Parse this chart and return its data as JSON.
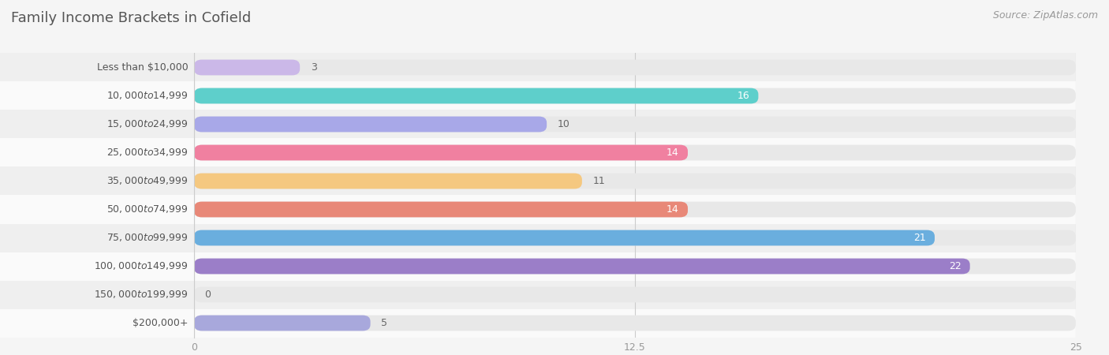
{
  "title": "Family Income Brackets in Cofield",
  "source": "Source: ZipAtlas.com",
  "categories": [
    "Less than $10,000",
    "$10,000 to $14,999",
    "$15,000 to $24,999",
    "$25,000 to $34,999",
    "$35,000 to $49,999",
    "$50,000 to $74,999",
    "$75,000 to $99,999",
    "$100,000 to $149,999",
    "$150,000 to $199,999",
    "$200,000+"
  ],
  "values": [
    3,
    16,
    10,
    14,
    11,
    14,
    21,
    22,
    0,
    5
  ],
  "colors": [
    "#cbb8e8",
    "#5ecfcb",
    "#a8a8e8",
    "#f080a0",
    "#f5c880",
    "#e88878",
    "#6aaede",
    "#9b7ec8",
    "#5ecfbb",
    "#a8a8dc"
  ],
  "xlim": [
    0,
    25
  ],
  "xticks": [
    0,
    12.5,
    25
  ],
  "background_color": "#f5f5f5",
  "bar_background": "#e8e8e8",
  "row_background_odd": "#efefef",
  "row_background_even": "#fafafa",
  "title_color": "#555555",
  "label_color": "#555555",
  "value_color_inside": "#ffffff",
  "value_color_outside": "#666666",
  "label_fontsize": 9,
  "value_fontsize": 9,
  "title_fontsize": 13,
  "source_fontsize": 9,
  "bar_height": 0.55,
  "inside_threshold": 13
}
